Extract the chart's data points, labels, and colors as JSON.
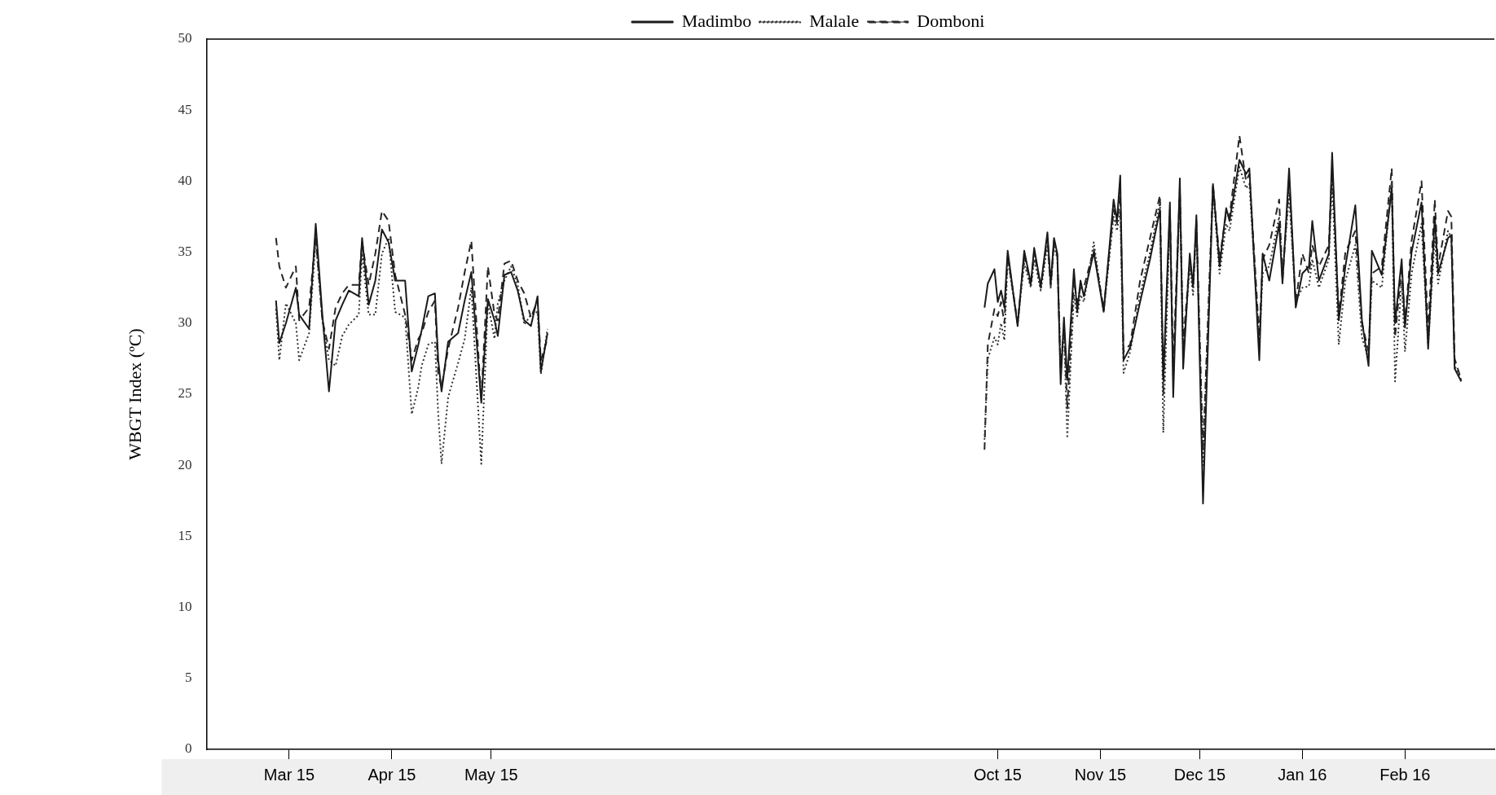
{
  "chart_data": {
    "type": "line",
    "ylabel": "WBGT Index (ºC)",
    "legend": "top",
    "ylim": [
      0,
      50
    ],
    "yticks": [
      0,
      5,
      10,
      15,
      20,
      25,
      30,
      35,
      40,
      45,
      50
    ],
    "xlim": [
      "2015-02-04",
      "2016-02-28"
    ],
    "xticks": [
      {
        "value": "2015-03-01",
        "label": "Mar 15"
      },
      {
        "value": "2015-04-01",
        "label": "Apr 15"
      },
      {
        "value": "2015-05-01",
        "label": "May 15"
      },
      {
        "value": "2015-10-01",
        "label": "Oct 15"
      },
      {
        "value": "2015-11-01",
        "label": "Nov 15"
      },
      {
        "value": "2015-12-01",
        "label": "Dec 15"
      },
      {
        "value": "2016-01-01",
        "label": "Jan 16"
      },
      {
        "value": "2016-02-01",
        "label": "Feb 16"
      }
    ],
    "x": [
      "2015-02-25",
      "2015-02-26",
      "2015-02-28",
      "2015-03-03",
      "2015-03-04",
      "2015-03-07",
      "2015-03-09",
      "2015-03-11",
      "2015-03-13",
      "2015-03-15",
      "2015-03-17",
      "2015-03-19",
      "2015-03-22",
      "2015-03-23",
      "2015-03-25",
      "2015-03-27",
      "2015-03-29",
      "2015-03-31",
      "2015-04-02",
      "2015-04-05",
      "2015-04-07",
      "2015-04-09",
      "2015-04-10",
      "2015-04-12",
      "2015-04-14",
      "2015-04-15",
      "2015-04-16",
      "2015-04-18",
      "2015-04-21",
      "2015-04-23",
      "2015-04-25",
      "2015-04-28",
      "2015-04-30",
      "2015-05-02",
      "2015-05-03",
      "2015-05-05",
      "2015-05-07",
      "2015-05-09",
      "2015-05-11",
      "2015-05-13",
      "2015-05-15",
      "2015-05-16",
      "2015-05-18",
      "2015-07-01",
      "2015-09-27",
      "2015-09-28",
      "2015-09-30",
      "2015-10-01",
      "2015-10-02",
      "2015-10-03",
      "2015-10-04",
      "2015-10-07",
      "2015-10-09",
      "2015-10-11",
      "2015-10-12",
      "2015-10-14",
      "2015-10-16",
      "2015-10-17",
      "2015-10-18",
      "2015-10-19",
      "2015-10-20",
      "2015-10-21",
      "2015-10-22",
      "2015-10-24",
      "2015-10-25",
      "2015-10-26",
      "2015-10-27",
      "2015-10-30",
      "2015-11-02",
      "2015-11-05",
      "2015-11-06",
      "2015-11-07",
      "2015-11-08",
      "2015-11-10",
      "2015-11-13",
      "2015-11-16",
      "2015-11-19",
      "2015-11-20",
      "2015-11-22",
      "2015-11-23",
      "2015-11-25",
      "2015-11-26",
      "2015-11-28",
      "2015-11-29",
      "2015-11-30",
      "2015-12-02",
      "2015-12-05",
      "2015-12-07",
      "2015-12-09",
      "2015-12-10",
      "2015-12-13",
      "2015-12-15",
      "2015-12-16",
      "2015-12-19",
      "2015-12-20",
      "2015-12-22",
      "2015-12-25",
      "2015-12-26",
      "2015-12-28",
      "2015-12-30",
      "2016-01-01",
      "2016-01-03",
      "2016-01-04",
      "2016-01-06",
      "2016-01-09",
      "2016-01-10",
      "2016-01-12",
      "2016-01-14",
      "2016-01-17",
      "2016-01-19",
      "2016-01-21",
      "2016-01-22",
      "2016-01-25",
      "2016-01-28",
      "2016-01-29",
      "2016-01-31",
      "2016-02-01",
      "2016-02-03",
      "2016-02-06",
      "2016-02-08",
      "2016-02-10",
      "2016-02-11",
      "2016-02-14",
      "2016-02-15",
      "2016-02-16",
      "2016-02-18"
    ],
    "series": [
      {
        "name": "Madimbo",
        "color": "#1a1a1a",
        "line_style": "solid",
        "values": [
          31.6,
          28.6,
          30.0,
          32.5,
          30.6,
          29.6,
          37.0,
          30.6,
          25.2,
          30.2,
          31.3,
          32.3,
          31.9,
          36.0,
          31.3,
          33.0,
          36.6,
          35.7,
          33.0,
          33.0,
          26.6,
          28.5,
          29.5,
          31.9,
          32.1,
          27.4,
          25.2,
          28.7,
          29.3,
          31.6,
          33.6,
          24.4,
          31.7,
          30.2,
          29.1,
          33.4,
          33.6,
          32.3,
          30.2,
          29.8,
          31.9,
          26.6,
          29.3,
          null,
          31.1,
          32.8,
          33.8,
          31.5,
          32.3,
          31.1,
          35.1,
          29.8,
          35.1,
          32.8,
          35.3,
          32.6,
          36.4,
          32.8,
          36.0,
          34.9,
          25.7,
          30.4,
          26.0,
          33.8,
          30.8,
          33.0,
          31.9,
          35.0,
          30.8,
          38.7,
          37.2,
          40.4,
          27.4,
          28.3,
          31.5,
          34.5,
          38.0,
          26.0,
          38.5,
          24.8,
          40.2,
          26.8,
          34.9,
          32.6,
          37.6,
          17.3,
          39.8,
          34.0,
          38.1,
          37.2,
          41.5,
          40.5,
          40.9,
          27.4,
          34.9,
          33.0,
          37.0,
          32.8,
          40.9,
          31.1,
          33.5,
          34.0,
          37.2,
          33.0,
          34.9,
          42.0,
          30.2,
          34.0,
          38.3,
          30.2,
          27.0,
          35.1,
          33.4,
          39.5,
          30.0,
          34.5,
          29.7,
          35.0,
          38.5,
          28.2,
          37.5,
          33.5,
          36.0,
          36.2,
          26.8,
          25.9
        ]
      },
      {
        "name": "Malale",
        "color": "#333333",
        "line_style": "dotted",
        "values": [
          31.0,
          27.4,
          31.4,
          30.0,
          27.4,
          29.3,
          35.8,
          30.2,
          27.4,
          27.0,
          29.1,
          29.9,
          30.6,
          34.9,
          30.6,
          30.6,
          34.9,
          36.0,
          30.8,
          30.4,
          23.6,
          25.5,
          27.0,
          28.5,
          28.7,
          23.6,
          20.1,
          24.8,
          27.2,
          28.9,
          32.5,
          20.1,
          31.4,
          28.9,
          31.4,
          33.0,
          34.0,
          32.7,
          29.9,
          30.6,
          30.8,
          26.4,
          29.6,
          null,
          21.8,
          27.5,
          29.0,
          28.5,
          30.0,
          28.8,
          34.5,
          30.0,
          34.2,
          32.5,
          34.5,
          32.3,
          35.5,
          32.5,
          35.5,
          34.5,
          27.0,
          29.5,
          21.9,
          32.0,
          30.5,
          32.0,
          31.5,
          35.7,
          30.8,
          37.5,
          36.5,
          38.0,
          26.5,
          28.0,
          32.0,
          35.0,
          38.5,
          22.3,
          37.5,
          26.0,
          39.0,
          28.0,
          34.0,
          32.0,
          37.0,
          20.0,
          39.5,
          33.5,
          37.0,
          36.5,
          41.0,
          39.5,
          39.8,
          28.5,
          33.5,
          34.0,
          37.5,
          33.5,
          39.0,
          31.5,
          32.5,
          32.6,
          34.5,
          32.5,
          34.5,
          40.0,
          28.5,
          33.0,
          35.5,
          29.0,
          27.5,
          33.0,
          32.5,
          40.0,
          25.9,
          33.0,
          28.0,
          33.5,
          37.0,
          28.5,
          36.0,
          32.8,
          36.5,
          36.0,
          27.0,
          26.0
        ]
      },
      {
        "name": "Domboni",
        "color": "#262626",
        "line_style": "dashed",
        "values": [
          36.0,
          34.0,
          32.5,
          34.0,
          30.2,
          31.1,
          36.2,
          30.2,
          28.2,
          31.1,
          32.1,
          32.7,
          32.7,
          35.7,
          32.7,
          34.9,
          37.9,
          37.2,
          33.4,
          30.6,
          27.4,
          28.9,
          29.3,
          30.8,
          31.6,
          26.4,
          25.5,
          28.2,
          31.1,
          33.6,
          35.8,
          24.6,
          34.0,
          30.6,
          30.2,
          34.2,
          34.4,
          33.0,
          32.1,
          30.4,
          31.6,
          27.4,
          28.9,
          null,
          21.1,
          28.5,
          31.0,
          30.5,
          31.5,
          30.0,
          34.8,
          30.0,
          34.8,
          32.6,
          35.0,
          32.5,
          36.0,
          32.6,
          35.8,
          34.7,
          26.5,
          30.0,
          24.0,
          33.0,
          31.5,
          32.5,
          32.5,
          35.2,
          31.0,
          38.0,
          37.0,
          39.0,
          28.0,
          28.5,
          33.0,
          36.0,
          39.0,
          25.0,
          38.0,
          27.0,
          39.5,
          28.5,
          34.5,
          32.5,
          37.2,
          21.0,
          39.8,
          34.5,
          37.8,
          37.5,
          43.2,
          40.0,
          40.5,
          29.0,
          34.5,
          35.5,
          38.7,
          33.0,
          40.0,
          31.5,
          34.9,
          33.5,
          35.5,
          34.0,
          35.5,
          41.0,
          30.5,
          35.0,
          36.5,
          30.0,
          28.0,
          33.5,
          34.0,
          40.9,
          29.0,
          34.0,
          30.0,
          35.8,
          40.0,
          29.5,
          38.7,
          34.0,
          37.9,
          37.5,
          27.5,
          26.0
        ]
      }
    ]
  }
}
